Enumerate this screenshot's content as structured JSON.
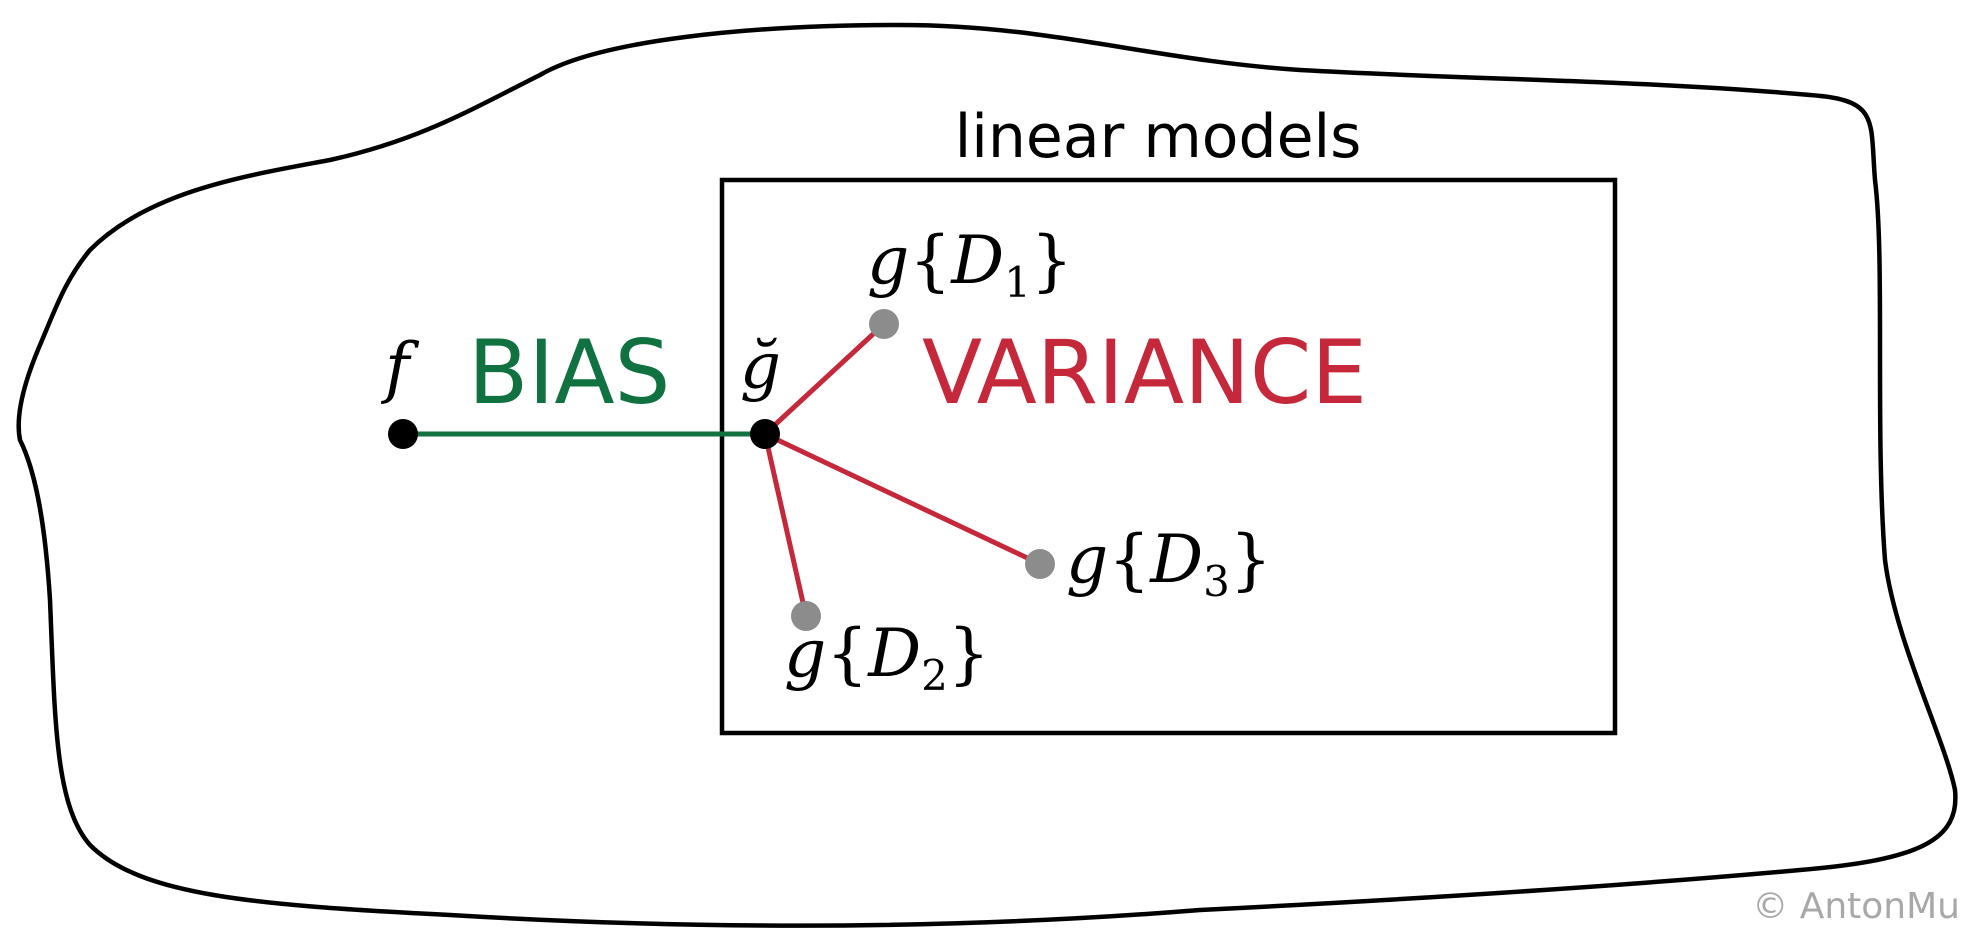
{
  "diagram": {
    "region_label": "linear models",
    "target_label": "f",
    "mean_hypothesis_label": "ğ",
    "bias_label": "BIAS",
    "variance_label": "VARIANCE",
    "hypotheses": [
      {
        "name": "g",
        "dataset": "D",
        "index": "1"
      },
      {
        "name": "g",
        "dataset": "D",
        "index": "2"
      },
      {
        "name": "g",
        "dataset": "D",
        "index": "3"
      }
    ],
    "credit": "© AntonMu",
    "colors": {
      "bias": "#0f7240",
      "variance": "#c5283a",
      "outline": "#000000",
      "sample_point": "#8c8c8c",
      "credit": "#a8a8a8"
    }
  }
}
